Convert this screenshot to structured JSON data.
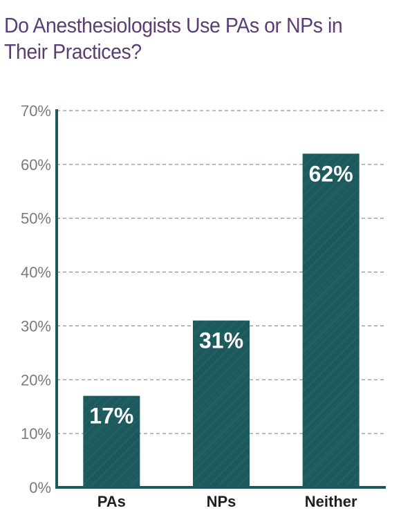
{
  "chart_data": {
    "type": "bar",
    "title": "Do Anesthesiologists Use PAs or NPs in Their Practices?",
    "categories": [
      "PAs",
      "NPs",
      "Neither"
    ],
    "values": [
      17,
      31,
      62
    ],
    "data_labels": [
      "17%",
      "31%",
      "62%"
    ],
    "ylim": [
      0,
      70
    ],
    "yticks": [
      0,
      10,
      20,
      30,
      40,
      50,
      60,
      70
    ],
    "ytick_labels": [
      "0%",
      "10%",
      "20%",
      "30%",
      "40%",
      "50%",
      "60%",
      "70%"
    ],
    "grid": true,
    "colors": {
      "bar": "#1c5a5d",
      "axis": "#1c5a5d",
      "grid": "#5f7f86",
      "title": "#5b3f73"
    }
  }
}
